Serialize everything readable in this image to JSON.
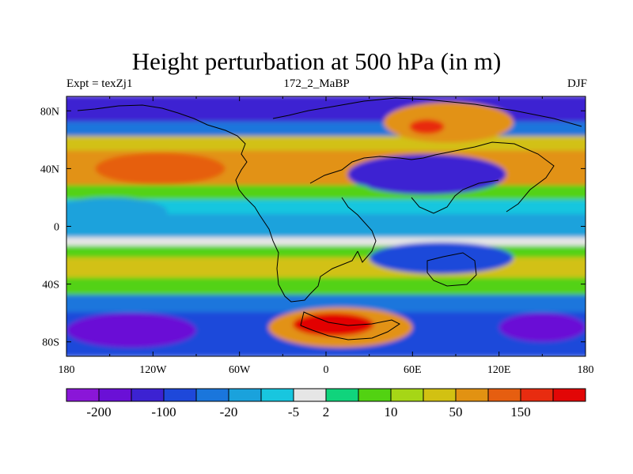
{
  "chart_data": {
    "type": "heatmap",
    "title": "Height perturbation at 500 hPa (in m)",
    "left_label": "Expt = texZj1",
    "center_label": "172_2_MaBP",
    "right_label": "DJF",
    "xlabel": "",
    "ylabel": "",
    "xlim": [
      -180,
      180
    ],
    "ylim": [
      -90,
      90
    ],
    "x_ticks": [
      {
        "value": -180,
        "label": "180"
      },
      {
        "value": -120,
        "label": "120W"
      },
      {
        "value": -60,
        "label": "60W"
      },
      {
        "value": 0,
        "label": "0"
      },
      {
        "value": 60,
        "label": "60E"
      },
      {
        "value": 120,
        "label": "120E"
      },
      {
        "value": 180,
        "label": "180"
      }
    ],
    "y_ticks": [
      {
        "value": 80,
        "label": "80N"
      },
      {
        "value": 40,
        "label": "40N"
      },
      {
        "value": 0,
        "label": "0"
      },
      {
        "value": -40,
        "label": "40S"
      },
      {
        "value": -80,
        "label": "80S"
      }
    ],
    "colorbar": {
      "colors": [
        "#8a16d8",
        "#6a10d6",
        "#3c22d2",
        "#1e48da",
        "#1a76dc",
        "#1aa2dc",
        "#18c6df",
        "#e6e6e6",
        "#10d47c",
        "#52d212",
        "#a6d616",
        "#d2c112",
        "#e29212",
        "#e65e10",
        "#e82c10",
        "#e20606"
      ],
      "labels": [
        {
          "index": 1,
          "text": "-200"
        },
        {
          "index": 3,
          "text": "-100"
        },
        {
          "index": 5,
          "text": "-20"
        },
        {
          "index": 7,
          "text": "-5"
        },
        {
          "index": 8,
          "text": "2"
        },
        {
          "index": 10,
          "text": "10"
        },
        {
          "index": 12,
          "text": "50"
        },
        {
          "index": 14,
          "text": "150"
        }
      ]
    },
    "field_bands": [
      {
        "lat_top": 90,
        "lat_bottom": 72,
        "level": 2,
        "note": "Arctic low"
      },
      {
        "lat_top": 72,
        "lat_bottom": 62,
        "level": 4
      },
      {
        "lat_top": 62,
        "lat_bottom": 52,
        "level": 11
      },
      {
        "lat_top": 52,
        "lat_bottom": 28,
        "level": 12,
        "note": "NH mid-latitude high"
      },
      {
        "lat_top": 28,
        "lat_bottom": 18,
        "level": 9
      },
      {
        "lat_top": 18,
        "lat_bottom": 8,
        "level": 6
      },
      {
        "lat_top": 8,
        "lat_bottom": -8,
        "level": 5,
        "note": "tropical low"
      },
      {
        "lat_top": -8,
        "lat_bottom": -14,
        "level": 7
      },
      {
        "lat_top": -14,
        "lat_bottom": -22,
        "level": 9
      },
      {
        "lat_top": -22,
        "lat_bottom": -36,
        "level": 11
      },
      {
        "lat_top": -36,
        "lat_bottom": -48,
        "level": 9
      },
      {
        "lat_top": -48,
        "lat_bottom": -60,
        "level": 4
      },
      {
        "lat_top": -60,
        "lat_bottom": -90,
        "level": 3,
        "note": "Antarctic low"
      }
    ],
    "field_features": [
      {
        "lon": 85,
        "lat": 72,
        "rx": 45,
        "ry": 14,
        "level": 12
      },
      {
        "lon": 70,
        "lat": 69,
        "rx": 12,
        "ry": 5,
        "level": 14
      },
      {
        "lon": -115,
        "lat": 40,
        "rx": 45,
        "ry": 11,
        "level": 13
      },
      {
        "lon": 70,
        "lat": 36,
        "rx": 55,
        "ry": 14,
        "level": 2
      },
      {
        "lon": 20,
        "lat": 24,
        "rx": 12,
        "ry": 5,
        "level": 9
      },
      {
        "lon": -150,
        "lat": 10,
        "rx": 40,
        "ry": 10,
        "level": 5
      },
      {
        "lon": 80,
        "lat": -22,
        "rx": 50,
        "ry": 11,
        "level": 3
      },
      {
        "lon": 10,
        "lat": -70,
        "rx": 50,
        "ry": 14,
        "level": 12
      },
      {
        "lon": 5,
        "lat": -68,
        "rx": 28,
        "ry": 8,
        "level": 15
      },
      {
        "lon": -135,
        "lat": -72,
        "rx": 45,
        "ry": 12,
        "level": 1
      },
      {
        "lon": 150,
        "lat": -70,
        "rx": 30,
        "ry": 10,
        "level": 1
      }
    ]
  }
}
